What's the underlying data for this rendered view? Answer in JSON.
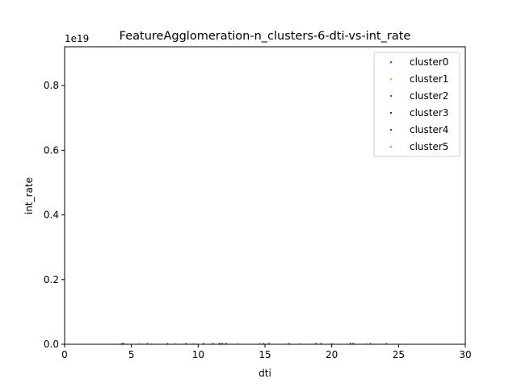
{
  "chart_data": {
    "type": "scatter",
    "title": "FeatureAgglomeration-n_clusters-6-dti-vs-int_rate",
    "xlabel": "dti",
    "ylabel": "int_rate",
    "y_offset_text": "1e19",
    "xlim": [
      0,
      30
    ],
    "ylim": [
      0,
      0.92
    ],
    "y_scale_note": "y values in units of 1e19",
    "x_ticks": [
      0,
      5,
      10,
      15,
      20,
      25,
      30
    ],
    "x_tick_labels": [
      "0",
      "5",
      "10",
      "15",
      "20",
      "25",
      "30"
    ],
    "y_ticks": [
      0.0,
      0.2,
      0.4,
      0.6,
      0.8
    ],
    "y_tick_labels": [
      "0.0",
      "0.2",
      "0.4",
      "0.6",
      "0.8"
    ],
    "grid": false,
    "legend_position": "top-right",
    "series": [
      {
        "name": "cluster0",
        "color": "#ff0000",
        "x": [
          4.3,
          7.7,
          11.1,
          14.9,
          16.8,
          22.9
        ],
        "y": [
          0.0002,
          0.0003,
          0.0002,
          0.0003,
          0.0002,
          0.0003
        ]
      },
      {
        "name": "cluster1",
        "color": "#ffa500",
        "x": [
          5.6,
          6.5,
          9.7,
          13.0,
          17.6,
          22.6
        ],
        "y": [
          0.0002,
          0.0002,
          0.0003,
          0.0002,
          0.0002,
          0.0002
        ]
      },
      {
        "name": "cluster2",
        "color": "#008000",
        "x": [
          6.2,
          10.4,
          15.3,
          19.2,
          24.1
        ],
        "y": [
          0.0002,
          0.0002,
          0.0003,
          0.0002,
          0.0002
        ]
      },
      {
        "name": "cluster3",
        "color": "#0000ff",
        "x": [
          11.6,
          11.8,
          21.4
        ],
        "y": [
          0.0003,
          0.0003,
          0.0002
        ]
      },
      {
        "name": "cluster4",
        "color": "#800080",
        "x": [
          4.4,
          9.1,
          12.1,
          18.8,
          21.6
        ],
        "y": [
          0.0002,
          0.0003,
          0.0002,
          0.0003,
          0.0002
        ]
      },
      {
        "name": "cluster5",
        "color": "#ff69b4",
        "x": [
          8.3,
          14.6,
          20.0
        ],
        "y": [
          0.0002,
          0.0002,
          0.0002
        ]
      }
    ]
  }
}
